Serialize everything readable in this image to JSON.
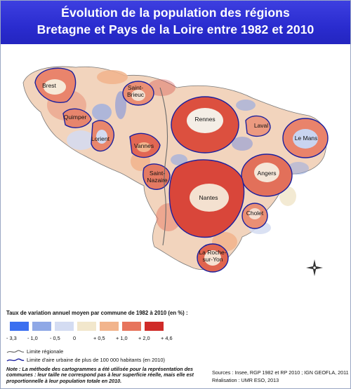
{
  "title": {
    "line1": "Évolution de la population des régions",
    "line2": "Bretagne et Pays de la Loire entre 1982 et 2010"
  },
  "map": {
    "cities": [
      {
        "id": "brest",
        "lines": [
          "Brest"
        ]
      },
      {
        "id": "saint-brieuc",
        "lines": [
          "Saint-",
          "Brieuc"
        ]
      },
      {
        "id": "quimper",
        "lines": [
          "Quimper"
        ]
      },
      {
        "id": "lorient",
        "lines": [
          "Lorient"
        ]
      },
      {
        "id": "vannes",
        "lines": [
          "Vannes"
        ]
      },
      {
        "id": "rennes",
        "lines": [
          "Rennes"
        ]
      },
      {
        "id": "laval",
        "lines": [
          "Laval"
        ]
      },
      {
        "id": "le-mans",
        "lines": [
          "Le Mans"
        ]
      },
      {
        "id": "saint-nazaire",
        "lines": [
          "Saint-",
          "Nazaire"
        ]
      },
      {
        "id": "angers",
        "lines": [
          "Angers"
        ]
      },
      {
        "id": "nantes",
        "lines": [
          "Nantes"
        ]
      },
      {
        "id": "cholet",
        "lines": [
          "Cholet"
        ]
      },
      {
        "id": "la-roche-sur-yon",
        "lines": [
          "La Roche-",
          "sur-Yon"
        ]
      }
    ]
  },
  "legend": {
    "heading": "Taux de variation annuel moyen par commune de 1982 à 2010 (en %) :",
    "class_colors": [
      "#3b6ff0",
      "#8fa8e6",
      "#d4dcf2",
      "#f2e7cc",
      "#f2b48c",
      "#e7745c",
      "#cf2b28"
    ],
    "ticks": [
      "- 3,3",
      "- 1,0",
      "- 0,5",
      "0",
      "+ 0,5",
      "+ 1,0",
      "+ 2,0",
      "+ 4,6"
    ],
    "regional_limit": "Limite régionale",
    "urban_limit": "Limite d'aire urbaine de plus de 100 000 habitants (en 2010)",
    "urban_limit_color": "#1a1f9e"
  },
  "note": "Note : La méthode des cartogrammes a été utilisée pour la représentation des communes : leur taille ne correspond pas à leur superficie réelle, mais elle est proportionnelle à leur population totale en 2010.",
  "sources": "Sources : Insee, RGP 1982 et RP 2010 ; IGN GEOFLA, 2011",
  "credit": "Réalisation : UMR ESO, 2013"
}
